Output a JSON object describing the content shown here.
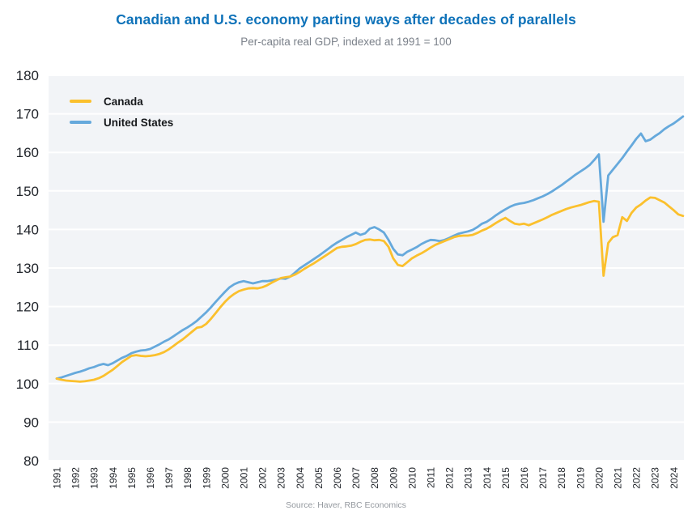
{
  "chart_data": {
    "type": "line",
    "title": "Canadian and U.S. economy parting ways after decades of parallels",
    "subtitle": "Per-capita real GDP, indexed at 1991 = 100",
    "source": "Source: Haver, RBC Economics",
    "x_start": 1991,
    "x_step": 0.25,
    "x_tick_years": [
      1991,
      1992,
      1993,
      1994,
      1995,
      1996,
      1997,
      1998,
      1999,
      2000,
      2001,
      2002,
      2003,
      2004,
      2005,
      2006,
      2007,
      2008,
      2009,
      2010,
      2011,
      2012,
      2013,
      2014,
      2015,
      2016,
      2017,
      2018,
      2019,
      2020,
      2021,
      2022,
      2023,
      2024
    ],
    "ylim": [
      80,
      180
    ],
    "y_tick_step": 10,
    "grid": "horizontal-white-on-light-panel",
    "plot_bg": "#f2f4f7",
    "grid_color": "#ffffff",
    "axis_text_color": "#1f2329",
    "title_color": "#0e72b9",
    "legend_position": "top-left-inside",
    "series": [
      {
        "name": "Canada",
        "color": "#FBC02D",
        "values": [
          101.3,
          101.0,
          100.8,
          100.7,
          100.6,
          100.5,
          100.6,
          100.8,
          101.0,
          101.4,
          102.0,
          102.8,
          103.6,
          104.6,
          105.6,
          106.4,
          107.2,
          107.4,
          107.2,
          107.1,
          107.2,
          107.4,
          107.7,
          108.2,
          108.9,
          109.8,
          110.7,
          111.5,
          112.5,
          113.5,
          114.5,
          114.7,
          115.5,
          116.8,
          118.3,
          119.8,
          121.2,
          122.4,
          123.3,
          124.0,
          124.4,
          124.7,
          124.8,
          124.7,
          125.0,
          125.5,
          126.2,
          126.8,
          127.4,
          127.6,
          127.8,
          128.3,
          129.0,
          129.8,
          130.5,
          131.2,
          132.0,
          132.8,
          133.6,
          134.4,
          135.2,
          135.5,
          135.6,
          135.8,
          136.2,
          136.8,
          137.3,
          137.4,
          137.2,
          137.3,
          137.0,
          135.5,
          132.5,
          130.8,
          130.5,
          131.5,
          132.5,
          133.2,
          133.8,
          134.5,
          135.3,
          136.0,
          136.5,
          137.0,
          137.5,
          138.0,
          138.3,
          138.4,
          138.4,
          138.6,
          139.1,
          139.7,
          140.2,
          140.9,
          141.7,
          142.4,
          143.0,
          142.2,
          141.5,
          141.3,
          141.5,
          141.1,
          141.6,
          142.1,
          142.6,
          143.2,
          143.8,
          144.3,
          144.8,
          145.3,
          145.7,
          146.0,
          146.3,
          146.7,
          147.1,
          147.4,
          147.2,
          128.0,
          136.5,
          138.0,
          138.5,
          143.2,
          142.2,
          144.3,
          145.7,
          146.5,
          147.5,
          148.3,
          148.2,
          147.6,
          147.0,
          146.0,
          145.0,
          143.9,
          143.5
        ]
      },
      {
        "name": "United States",
        "color": "#66A9DC",
        "values": [
          101.3,
          101.6,
          102.0,
          102.4,
          102.8,
          103.1,
          103.5,
          104.0,
          104.3,
          104.8,
          105.1,
          104.8,
          105.3,
          106.0,
          106.7,
          107.2,
          107.9,
          108.3,
          108.6,
          108.7,
          109.0,
          109.6,
          110.2,
          110.9,
          111.5,
          112.3,
          113.1,
          113.9,
          114.6,
          115.4,
          116.3,
          117.4,
          118.5,
          119.8,
          121.2,
          122.5,
          123.8,
          125.0,
          125.8,
          126.3,
          126.6,
          126.3,
          126.0,
          126.3,
          126.6,
          126.6,
          126.8,
          127.0,
          127.3,
          127.2,
          127.8,
          128.8,
          129.9,
          130.7,
          131.5,
          132.3,
          133.1,
          134.0,
          134.9,
          135.8,
          136.6,
          137.3,
          138.0,
          138.6,
          139.2,
          138.6,
          139.0,
          140.2,
          140.6,
          140.0,
          139.2,
          137.3,
          135.0,
          133.5,
          133.3,
          134.2,
          134.8,
          135.4,
          136.2,
          136.8,
          137.3,
          137.2,
          137.0,
          137.3,
          137.8,
          138.4,
          138.9,
          139.2,
          139.5,
          139.9,
          140.6,
          141.5,
          142.0,
          142.8,
          143.7,
          144.5,
          145.2,
          145.9,
          146.4,
          146.7,
          146.9,
          147.2,
          147.6,
          148.1,
          148.6,
          149.2,
          149.9,
          150.7,
          151.5,
          152.4,
          153.3,
          154.2,
          155.0,
          155.8,
          156.7,
          158.0,
          159.5,
          142.0,
          154.0,
          155.5,
          157.0,
          158.5,
          160.2,
          161.8,
          163.5,
          164.9,
          162.9,
          163.3,
          164.2,
          165.0,
          166.0,
          166.8,
          167.5,
          168.4,
          169.3
        ]
      }
    ]
  }
}
